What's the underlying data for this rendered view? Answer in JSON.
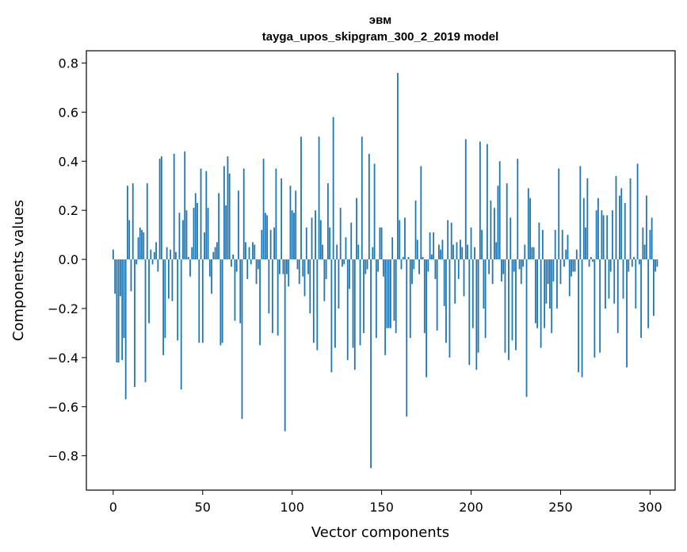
{
  "chart_data": {
    "type": "bar",
    "title_line1": "эвм",
    "title_line2": "tayga_upos_skipgram_300_2_2019 model",
    "xlabel": "Vector components",
    "ylabel": "Components values",
    "xlim": [
      -15,
      314
    ],
    "ylim": [
      -0.94,
      0.85
    ],
    "xticks": [
      0,
      50,
      100,
      150,
      200,
      250,
      300
    ],
    "yticks": [
      -0.8,
      -0.6,
      -0.4,
      -0.2,
      0.0,
      0.2,
      0.4,
      0.6,
      0.8
    ],
    "ytick_labels": [
      "−0.8",
      "−0.6",
      "−0.4",
      "−0.2",
      "0.0",
      "0.2",
      "0.4",
      "0.6",
      "0.8"
    ],
    "grid": false,
    "bar_color": "#1f77b4",
    "values": [
      0.04,
      -0.14,
      -0.42,
      -0.42,
      -0.15,
      -0.41,
      -0.32,
      -0.57,
      0.3,
      0.16,
      -0.13,
      0.31,
      -0.52,
      -0.02,
      0.09,
      0.13,
      0.12,
      0.11,
      -0.5,
      0.31,
      -0.26,
      0.04,
      -0.02,
      0.03,
      0.07,
      -0.05,
      0.41,
      0.42,
      -0.39,
      -0.32,
      0.05,
      -0.16,
      0.04,
      -0.17,
      0.43,
      0.03,
      -0.33,
      0.19,
      -0.53,
      0.16,
      0.44,
      0.2,
      0.01,
      -0.07,
      0.05,
      0.21,
      0.27,
      0.23,
      -0.34,
      0.37,
      -0.34,
      0.11,
      0.36,
      0.21,
      -0.07,
      -0.14,
      0.03,
      0.05,
      0.07,
      0.27,
      -0.35,
      -0.34,
      0.38,
      0.22,
      0.42,
      0.35,
      -0.03,
      0.02,
      -0.25,
      -0.05,
      0.28,
      -0.26,
      -0.65,
      0.37,
      0.07,
      -0.08,
      0.05,
      -0.02,
      0.07,
      0.06,
      -0.1,
      -0.04,
      -0.35,
      0.12,
      0.41,
      0.19,
      0.18,
      -0.22,
      0.12,
      -0.3,
      0.13,
      0.37,
      -0.31,
      -0.06,
      0.33,
      -0.06,
      -0.7,
      -0.06,
      -0.11,
      0.3,
      0.2,
      0.19,
      0.28,
      -0.04,
      -0.1,
      0.5,
      -0.07,
      -0.15,
      0.13,
      -0.06,
      -0.22,
      0.17,
      -0.34,
      0.2,
      -0.37,
      0.5,
      0.16,
      0.06,
      -0.17,
      -0.08,
      0.31,
      0.13,
      -0.46,
      0.58,
      -0.36,
      0.06,
      -0.2,
      0.21,
      -0.03,
      -0.02,
      0.09,
      -0.41,
      -0.12,
      0.15,
      -0.36,
      -0.45,
      0.25,
      0.06,
      -0.35,
      0.5,
      -0.3,
      -0.06,
      -0.04,
      0.43,
      -0.85,
      0.05,
      0.39,
      -0.32,
      -0.05,
      0.13,
      0.13,
      -0.07,
      -0.39,
      -0.28,
      -0.28,
      -0.28,
      0.09,
      -0.25,
      -0.3,
      0.76,
      0.16,
      -0.04,
      0.01,
      0.17,
      -0.64,
      0.01,
      -0.32,
      -0.1,
      -0.04,
      0.24,
      0.08,
      -0.06,
      0.38,
      0.01,
      -0.3,
      -0.48,
      -0.05,
      0.11,
      0.02,
      0.11,
      -0.08,
      -0.29,
      0.06,
      0.04,
      0.08,
      -0.19,
      -0.34,
      0.16,
      -0.4,
      0.15,
      0.06,
      -0.18,
      0.07,
      -0.08,
      0.08,
      0.05,
      -0.15,
      0.49,
      0.06,
      -0.43,
      0.13,
      -0.28,
      0.05,
      -0.45,
      -0.38,
      0.48,
      0.12,
      -0.2,
      -0.32,
      0.47,
      -0.06,
      0.24,
      -0.1,
      0.21,
      0.07,
      0.3,
      0.4,
      -0.09,
      -0.06,
      -0.38,
      0.31,
      -0.41,
      0.17,
      -0.33,
      -0.05,
      -0.37,
      0.41,
      -0.04,
      -0.1,
      -0.03,
      0.06,
      -0.56,
      0.29,
      0.25,
      0.05,
      0.05,
      -0.26,
      -0.28,
      0.15,
      -0.36,
      0.12,
      -0.28,
      -0.18,
      -0.1,
      -0.2,
      -0.3,
      -0.09,
      0.12,
      -0.2,
      0.37,
      -0.1,
      0.12,
      -0.03,
      0.04,
      0.1,
      -0.15,
      -0.07,
      -0.05,
      -0.05,
      0.04,
      -0.46,
      0.38,
      -0.48,
      0.25,
      0.13,
      0.33,
      -0.03,
      0.01,
      -0.01,
      -0.4,
      0.2,
      0.25,
      -0.38,
      0.2,
      0.18,
      -0.2,
      0.18,
      -0.16,
      -0.05,
      0.2,
      -0.18,
      0.34,
      -0.3,
      0.26,
      0.29,
      -0.16,
      0.23,
      -0.44,
      -0.05,
      0.33,
      -0.03,
      0.01,
      -0.2,
      0.39,
      -0.02,
      -0.32,
      0.13,
      0.06,
      0.26,
      -0.28,
      0.12,
      0.17,
      -0.23,
      -0.05,
      -0.03
    ]
  }
}
